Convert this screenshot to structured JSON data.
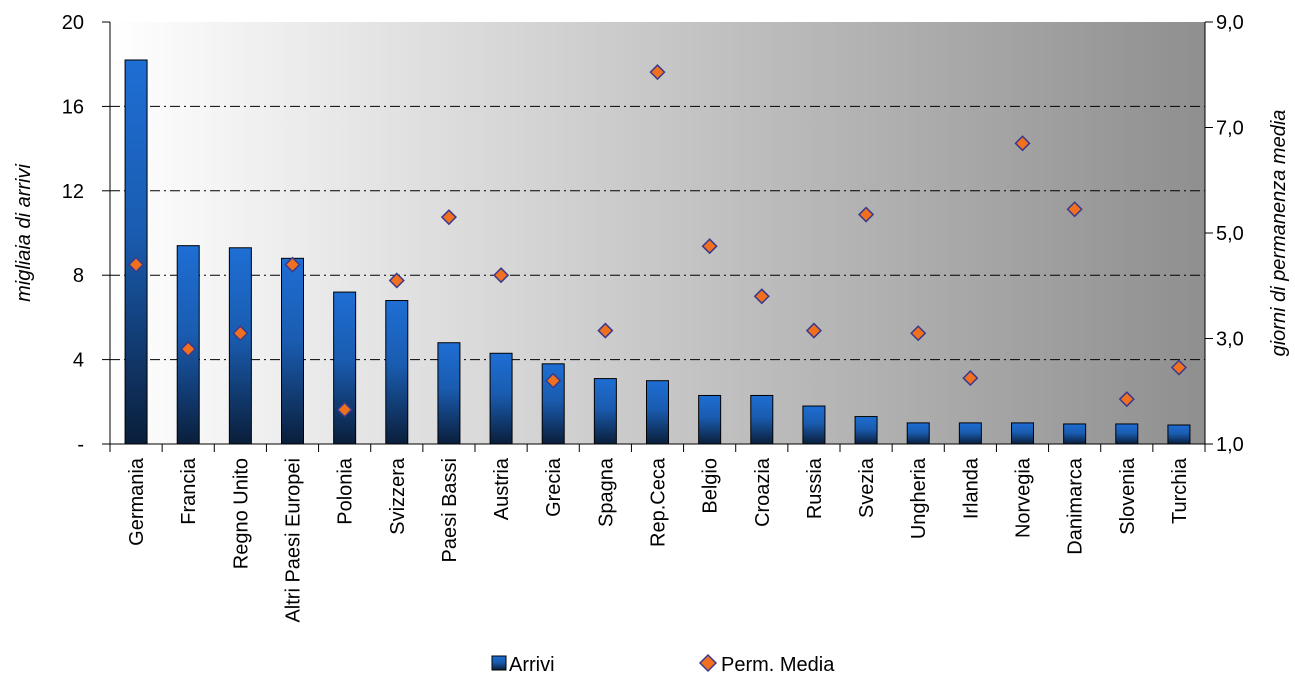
{
  "chart_data": {
    "type": "bar",
    "categories": [
      "Germania",
      "Francia",
      "Regno Unito",
      "Altri Paesi Europei",
      "Polonia",
      "Svizzera",
      "Paesi Bassi",
      "Austria",
      "Grecia",
      "Spagna",
      "Rep.Ceca",
      "Belgio",
      "Croazia",
      "Russia",
      "Svezia",
      "Ungheria",
      "Irlanda",
      "Norvegia",
      "Danimarca",
      "Slovenia",
      "Turchia"
    ],
    "series": [
      {
        "name": "Arrivi",
        "type": "bar",
        "axis": "left",
        "color": "#1E64C8",
        "values": [
          18.2,
          9.4,
          9.3,
          8.8,
          7.2,
          6.8,
          4.8,
          4.3,
          3.8,
          3.1,
          3.0,
          2.3,
          2.3,
          1.8,
          1.3,
          1.0,
          1.0,
          1.0,
          0.95,
          0.95,
          0.9
        ]
      },
      {
        "name": "Perm. Media",
        "type": "scatter",
        "axis": "right",
        "color": "#F07020",
        "values": [
          4.4,
          2.8,
          3.1,
          4.4,
          1.65,
          4.1,
          5.3,
          4.2,
          2.2,
          3.15,
          8.05,
          4.75,
          3.8,
          3.15,
          5.35,
          3.1,
          2.25,
          6.7,
          5.45,
          1.85,
          2.45
        ]
      }
    ],
    "y_left": {
      "label": "migliaia di arrivi",
      "ticks": [
        "20",
        "16",
        "12",
        "8",
        "4",
        "-"
      ],
      "tick_values": [
        20,
        16,
        12,
        8,
        4,
        0
      ],
      "range": [
        0,
        20
      ]
    },
    "y_right": {
      "label": "giorni di permanenza media",
      "ticks": [
        "9,0",
        "7,0",
        "5,0",
        "3,0",
        "1,0"
      ],
      "tick_values": [
        9,
        7,
        5,
        3,
        1
      ],
      "range": [
        1,
        9
      ]
    },
    "gridlines": [
      16,
      12,
      8,
      4
    ],
    "grid": true,
    "legend": {
      "placement": "bottom",
      "items": [
        {
          "label": "Arrivi",
          "symbol": "square"
        },
        {
          "label": "Perm. Media",
          "symbol": "diamond"
        }
      ]
    }
  }
}
